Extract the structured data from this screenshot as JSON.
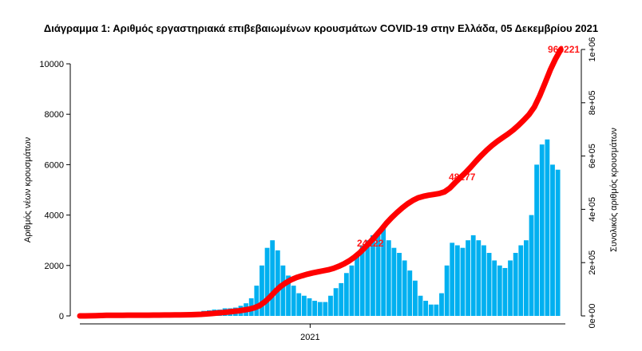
{
  "chart_data": {
    "type": "bar+line",
    "title": "Διάγραμμα 1: Αριθμός εργαστηριακά επιβεβαιωμένων κρουσμάτων COVID-19 στην Ελλάδα, 05 Δεκεμβρίου 2021",
    "ylabel": "Αριθμός νέων κρουσμάτων",
    "y2label": "Συνολικός αριθμός κρουσμάτων",
    "ylim": [
      0,
      10500
    ],
    "y2lim": [
      0,
      1000000
    ],
    "yticks": [
      "0",
      "2000",
      "4000",
      "6000",
      "8000",
      "10000"
    ],
    "y2ticks": [
      "0e+00",
      "2e+05",
      "4e+05",
      "6e+05",
      "8e+05",
      "1e+06"
    ],
    "xticks": [
      "2021"
    ],
    "x_start": "2020-03-02",
    "x_end": "2021-12-05",
    "x_interval": "weekly",
    "bar_color": "#00b0f0",
    "line_color": "#ff0000",
    "new_cases_weekly_avg": [
      10,
      40,
      80,
      90,
      60,
      40,
      20,
      15,
      10,
      10,
      10,
      10,
      10,
      15,
      15,
      20,
      25,
      30,
      30,
      40,
      50,
      80,
      150,
      200,
      220,
      250,
      250,
      300,
      300,
      330,
      400,
      500,
      700,
      1200,
      2000,
      2700,
      3000,
      2600,
      2000,
      1600,
      1200,
      900,
      800,
      700,
      600,
      550,
      550,
      800,
      1100,
      1300,
      1700,
      2000,
      2400,
      2800,
      3000,
      3200,
      3200,
      3500,
      3000,
      2700,
      2500,
      2200,
      1800,
      1400,
      800,
      600,
      450,
      450,
      900,
      2000,
      2900,
      2800,
      2700,
      3000,
      3200,
      3000,
      2800,
      2500,
      2200,
      2000,
      1900,
      2200,
      2500,
      2800,
      3000,
      4000,
      6000,
      6800,
      7000,
      6000,
      5800
    ],
    "annotations": [
      "24122",
      "48277",
      "966221"
    ]
  }
}
